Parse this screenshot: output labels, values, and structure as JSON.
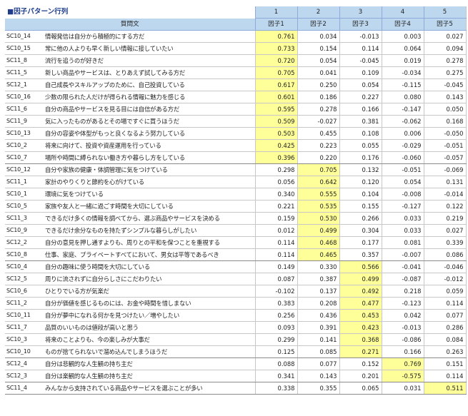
{
  "title": "■因子パターン行列",
  "header": {
    "question_label": "質問文",
    "factor_numbers": [
      "1",
      "2",
      "3",
      "4",
      "5"
    ],
    "factor_labels": [
      "因子1",
      "因子2",
      "因子3",
      "因子4",
      "因子5"
    ]
  },
  "highlight_color": "#ffff99",
  "rows": [
    {
      "code": "SC10_14",
      "text": "情報発信は自分から積極的にする方だ",
      "values": [
        "0.761",
        "0.034",
        "-0.013",
        "0.003",
        "0.027"
      ],
      "hl": 0,
      "grp": false
    },
    {
      "code": "SC10_15",
      "text": "常に他の人よりも早く新しい情報に接していたい",
      "values": [
        "0.733",
        "0.154",
        "0.114",
        "0.064",
        "0.094"
      ],
      "hl": 0,
      "grp": false
    },
    {
      "code": "SC11_8",
      "text": "流行を追うのが好きだ",
      "values": [
        "0.720",
        "0.054",
        "-0.045",
        "0.019",
        "0.278"
      ],
      "hl": 0,
      "grp": false
    },
    {
      "code": "SC11_5",
      "text": "新しい商品やサービスは、とりあえず試してみる方だ",
      "values": [
        "0.705",
        "0.041",
        "0.109",
        "-0.034",
        "0.275"
      ],
      "hl": 0,
      "grp": false
    },
    {
      "code": "SC12_1",
      "text": "自己成長やスキルアップのために、自己投資している",
      "values": [
        "0.617",
        "0.250",
        "0.054",
        "-0.115",
        "-0.045"
      ],
      "hl": 0,
      "grp": false
    },
    {
      "code": "SC10_16",
      "text": "少数の限られた人だけが得られる情報に魅力を感じる",
      "values": [
        "0.601",
        "0.186",
        "0.227",
        "0.080",
        "0.143"
      ],
      "hl": 0,
      "grp": false
    },
    {
      "code": "SC11_6",
      "text": "自分の商品やサービスを見る目には自信がある方だ",
      "values": [
        "0.595",
        "0.278",
        "0.166",
        "-0.147",
        "0.050"
      ],
      "hl": 0,
      "grp": false
    },
    {
      "code": "SC11_9",
      "text": "気に入ったものがあるとその場ですぐに買うほうだ",
      "values": [
        "0.509",
        "-0.027",
        "0.381",
        "-0.062",
        "0.168"
      ],
      "hl": 0,
      "grp": false
    },
    {
      "code": "SC10_13",
      "text": "自分の容姿や体型がもっと良くなるよう努力している",
      "values": [
        "0.503",
        "0.455",
        "0.108",
        "0.006",
        "-0.050"
      ],
      "hl": 0,
      "grp": false
    },
    {
      "code": "SC10_2",
      "text": "将来に向けて、投資や資産運用を行っている",
      "values": [
        "0.425",
        "0.223",
        "0.055",
        "-0.029",
        "-0.051"
      ],
      "hl": 0,
      "grp": false
    },
    {
      "code": "SC10_7",
      "text": "場所や時間に縛られない働き方や暮らし方をしている",
      "values": [
        "0.396",
        "0.220",
        "0.176",
        "-0.060",
        "-0.057"
      ],
      "hl": 0,
      "grp": true
    },
    {
      "code": "SC10_12",
      "text": "自分や家族の健康・体調管理に気をつけている",
      "values": [
        "0.298",
        "0.705",
        "0.132",
        "-0.051",
        "-0.069"
      ],
      "hl": 1,
      "grp": false
    },
    {
      "code": "SC11_1",
      "text": "家計のやりくりと節約を心がけている",
      "values": [
        "0.056",
        "0.642",
        "0.120",
        "0.054",
        "0.131"
      ],
      "hl": 1,
      "grp": false
    },
    {
      "code": "SC10_1",
      "text": "環境に気をつけている",
      "values": [
        "0.340",
        "0.555",
        "0.104",
        "-0.008",
        "-0.014"
      ],
      "hl": 1,
      "grp": false
    },
    {
      "code": "SC10_5",
      "text": "家族や友人と一緒に過ごす時間を大切にしている",
      "values": [
        "0.221",
        "0.535",
        "0.155",
        "-0.127",
        "0.122"
      ],
      "hl": 1,
      "grp": false
    },
    {
      "code": "SC11_3",
      "text": "できるだけ多くの情報を調べてから、選ぶ商品やサービスを決める",
      "values": [
        "0.159",
        "0.530",
        "0.266",
        "0.033",
        "0.219"
      ],
      "hl": 1,
      "grp": false
    },
    {
      "code": "SC10_9",
      "text": "できるだけ余分なものを持たずシンプルな暮らしがしたい",
      "values": [
        "0.012",
        "0.499",
        "0.304",
        "0.033",
        "0.027"
      ],
      "hl": 1,
      "grp": false
    },
    {
      "code": "SC12_2",
      "text": "自分の意見を押し通すよりも、周りとの平和を保つことを重視する",
      "values": [
        "0.114",
        "0.468",
        "0.177",
        "0.081",
        "0.339"
      ],
      "hl": 1,
      "grp": false
    },
    {
      "code": "SC10_8",
      "text": "仕事、家庭、プライベートすべてにおいて、男女は平等であるべき",
      "values": [
        "0.114",
        "0.465",
        "0.357",
        "-0.007",
        "0.086"
      ],
      "hl": 1,
      "grp": true
    },
    {
      "code": "SC10_4",
      "text": "自分の趣味に使う時間を大切にしている",
      "values": [
        "0.149",
        "0.330",
        "0.566",
        "-0.041",
        "-0.046"
      ],
      "hl": 2,
      "grp": false
    },
    {
      "code": "SC12_5",
      "text": "周りに流されずに自分らしさにこだわりたい",
      "values": [
        "0.087",
        "0.387",
        "0.499",
        "-0.087",
        "-0.012"
      ],
      "hl": 2,
      "grp": false
    },
    {
      "code": "SC10_6",
      "text": "ひとりでいる方が気楽だ",
      "values": [
        "-0.102",
        "0.137",
        "0.492",
        "0.218",
        "0.059"
      ],
      "hl": 2,
      "grp": false
    },
    {
      "code": "SC11_2",
      "text": "自分が価値を感じるものには、お金や時間を惜しまない",
      "values": [
        "0.383",
        "0.208",
        "0.477",
        "-0.123",
        "0.114"
      ],
      "hl": 2,
      "grp": false
    },
    {
      "code": "SC10_11",
      "text": "自分が夢中になれる何かを見つけたい／増やしたい",
      "values": [
        "0.256",
        "0.436",
        "0.453",
        "0.042",
        "0.077"
      ],
      "hl": 2,
      "grp": false
    },
    {
      "code": "SC11_7",
      "text": "品質のいいものは値段が高いと思う",
      "values": [
        "0.093",
        "0.391",
        "0.423",
        "-0.013",
        "0.286"
      ],
      "hl": 2,
      "grp": false
    },
    {
      "code": "SC10_3",
      "text": "将来のことよりも、今の楽しみが大事だ",
      "values": [
        "0.299",
        "0.141",
        "0.368",
        "-0.086",
        "0.084"
      ],
      "hl": 2,
      "grp": false
    },
    {
      "code": "SC10_10",
      "text": "ものが捨てられないで溜め込んでしまうほうだ",
      "values": [
        "0.125",
        "0.085",
        "0.271",
        "0.166",
        "0.263"
      ],
      "hl": 2,
      "grp": true
    },
    {
      "code": "SC12_4",
      "text": "自分は悲観的な人生観の持ち主だ",
      "values": [
        "0.088",
        "0.077",
        "0.152",
        "0.769",
        "0.151"
      ],
      "hl": 3,
      "grp": false
    },
    {
      "code": "SC12_3",
      "text": "自分は楽観的な人生観の持ち主だ",
      "values": [
        "0.341",
        "0.143",
        "0.201",
        "-0.575",
        "0.114"
      ],
      "hl": 3,
      "grp": true
    },
    {
      "code": "SC11_4",
      "text": "みんなから支持されている商品やサービスを選ぶことが多い",
      "values": [
        "0.338",
        "0.355",
        "0.065",
        "0.031",
        "0.511"
      ],
      "hl": 4,
      "grp": true
    }
  ]
}
